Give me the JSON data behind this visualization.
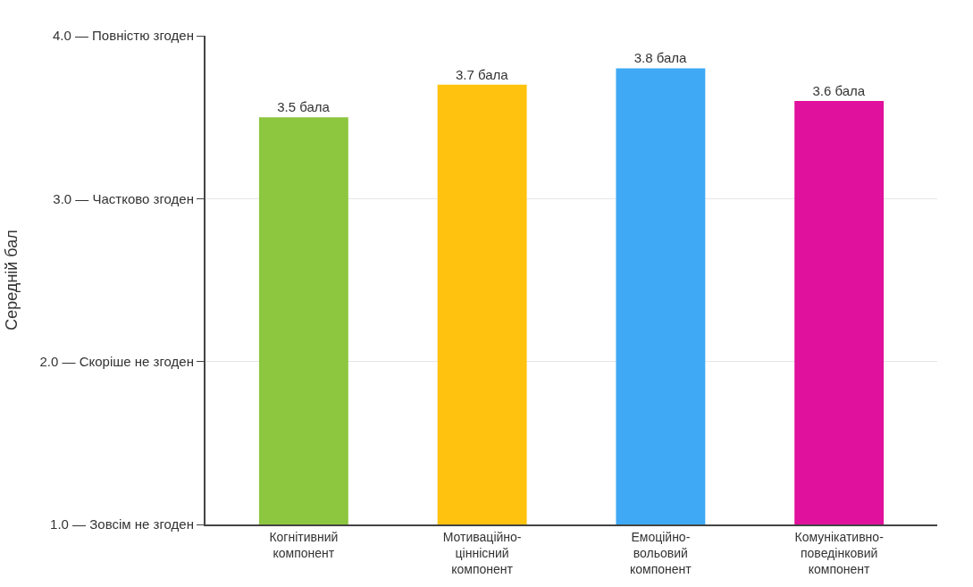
{
  "chart_data": {
    "type": "bar",
    "ylabel": "Середній бал",
    "categories": [
      "Когнітивний\nкомпонент",
      "Мотиваційно-\nціннісний\nкомпонент",
      "Емоційно-\nвольовий\nкомпонент",
      "Комунікативно-\nповедінковий\nкомпонент"
    ],
    "values": [
      3.5,
      3.7,
      3.8,
      3.6
    ],
    "colors": [
      "#8dc63f",
      "#ffc20e",
      "#3fa9f5",
      "#e0119d"
    ],
    "value_labels": [
      "3.5 бала",
      "3.7 бала",
      "3.8 бала",
      "3.6 бала"
    ],
    "ylim": [
      1.0,
      4.0
    ],
    "yticks": [
      {
        "value": 1.0,
        "label": "1.0 — Зовсім не згоден"
      },
      {
        "value": 2.0,
        "label": "2.0 — Скоріше не згоден"
      },
      {
        "value": 3.0,
        "label": "3.0 — Частково згоден"
      },
      {
        "value": 4.0,
        "label": "4.0 — Повністю згоден"
      }
    ],
    "grid": "y"
  }
}
